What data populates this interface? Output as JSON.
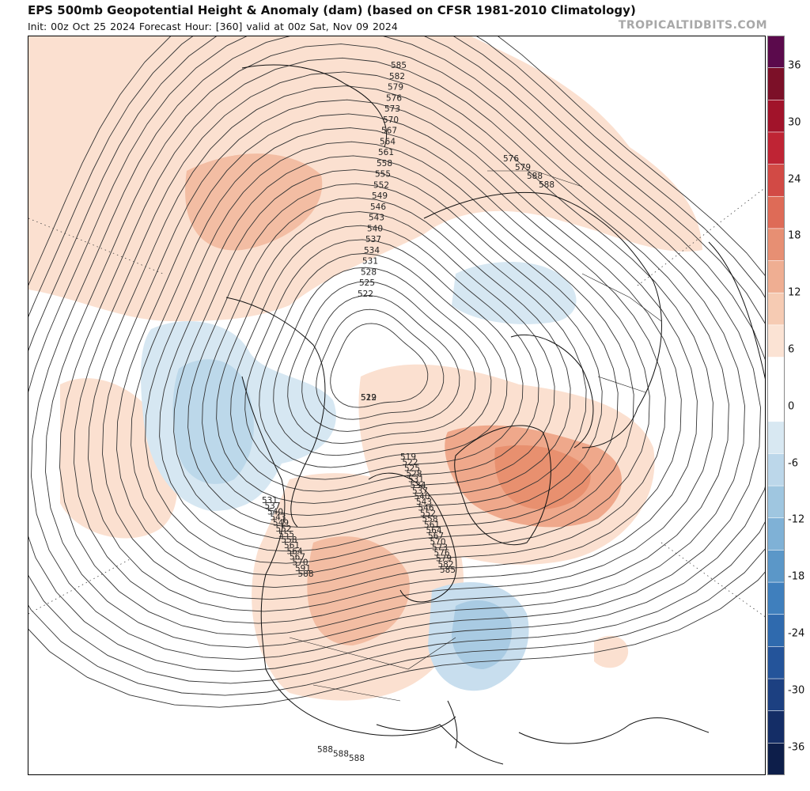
{
  "header": {
    "title": "EPS 500mb Geopotential Height & Anomaly (dam) (based on CFSR 1981-2010 Climatology)",
    "subtitle": "Init: 00z Oct 25 2024   Forecast Hour: [360]   valid at 00z Sat, Nov 09 2024",
    "brand": "TROPICALTIDBITS.COM"
  },
  "colorbar": {
    "labels": [
      "36",
      "30",
      "24",
      "18",
      "12",
      "6",
      "0",
      "-6",
      "-12",
      "-18",
      "-24",
      "-30",
      "-36"
    ],
    "colors": [
      "#5b0a4c",
      "#7c1028",
      "#a1132a",
      "#bf2434",
      "#d24a45",
      "#de6b57",
      "#e78f73",
      "#efae92",
      "#f6cbb3",
      "#fbe3d4",
      "#ffffff",
      "#ffffff",
      "#d8e8f2",
      "#bcd7ea",
      "#9fc6e0",
      "#7fb1d6",
      "#5b97c8",
      "#3f7fbd",
      "#2f6aae",
      "#24549a",
      "#1c4081",
      "#142d66",
      "#0d1e4a"
    ]
  },
  "map": {
    "projection": "polar-stereographic",
    "line_color": "#333333",
    "contour_labels": [
      {
        "v": "585",
        "p": "top"
      },
      {
        "v": "582",
        "p": "top"
      },
      {
        "v": "579",
        "p": "top"
      },
      {
        "v": "576",
        "p": "top"
      },
      {
        "v": "573",
        "p": "top"
      },
      {
        "v": "570",
        "p": "top"
      },
      {
        "v": "567",
        "p": "top"
      },
      {
        "v": "564",
        "p": "top"
      },
      {
        "v": "561",
        "p": "top"
      },
      {
        "v": "558",
        "p": "top"
      },
      {
        "v": "555",
        "p": "top"
      },
      {
        "v": "552",
        "p": "top"
      },
      {
        "v": "549",
        "p": "top"
      },
      {
        "v": "546",
        "p": "top"
      },
      {
        "v": "543",
        "p": "top"
      },
      {
        "v": "540",
        "p": "top"
      },
      {
        "v": "537",
        "p": "top"
      },
      {
        "v": "534",
        "p": "top"
      },
      {
        "v": "531",
        "p": "top"
      },
      {
        "v": "528",
        "p": "top"
      },
      {
        "v": "525",
        "p": "top"
      },
      {
        "v": "522",
        "p": "top"
      },
      {
        "v": "522",
        "p": "mid"
      },
      {
        "v": "519",
        "p": "mid"
      },
      {
        "v": "519",
        "p": "mid2"
      },
      {
        "v": "522",
        "p": "mid2"
      },
      {
        "v": "525",
        "p": "mid2"
      },
      {
        "v": "528",
        "p": "mid2"
      },
      {
        "v": "531",
        "p": "mid2"
      },
      {
        "v": "534",
        "p": "mid2"
      },
      {
        "v": "537",
        "p": "mid2"
      },
      {
        "v": "540",
        "p": "mid2"
      },
      {
        "v": "543",
        "p": "mid2"
      },
      {
        "v": "546",
        "p": "mid2"
      },
      {
        "v": "552",
        "p": "mid2"
      },
      {
        "v": "558",
        "p": "mid2"
      },
      {
        "v": "561",
        "p": "mid2"
      },
      {
        "v": "564",
        "p": "mid2"
      },
      {
        "v": "567",
        "p": "mid2"
      },
      {
        "v": "570",
        "p": "mid2"
      },
      {
        "v": "573",
        "p": "mid2"
      },
      {
        "v": "576",
        "p": "mid2"
      },
      {
        "v": "579",
        "p": "mid2"
      },
      {
        "v": "582",
        "p": "mid2"
      },
      {
        "v": "585",
        "p": "mid2"
      },
      {
        "v": "531",
        "p": "left"
      },
      {
        "v": "537",
        "p": "left"
      },
      {
        "v": "540",
        "p": "left"
      },
      {
        "v": "543",
        "p": "left"
      },
      {
        "v": "549",
        "p": "left"
      },
      {
        "v": "552",
        "p": "left"
      },
      {
        "v": "555",
        "p": "left"
      },
      {
        "v": "558",
        "p": "left"
      },
      {
        "v": "561",
        "p": "left"
      },
      {
        "v": "564",
        "p": "left"
      },
      {
        "v": "567",
        "p": "left"
      },
      {
        "v": "570",
        "p": "left"
      },
      {
        "v": "576",
        "p": "right"
      },
      {
        "v": "579",
        "p": "right"
      },
      {
        "v": "588",
        "p": "right"
      },
      {
        "v": "588",
        "p": "right"
      },
      {
        "v": "591",
        "p": "left"
      },
      {
        "v": "588",
        "p": "left"
      },
      {
        "v": "588",
        "p": "bottom"
      },
      {
        "v": "588",
        "p": "bottom"
      },
      {
        "v": "588",
        "p": "bottom"
      }
    ]
  }
}
